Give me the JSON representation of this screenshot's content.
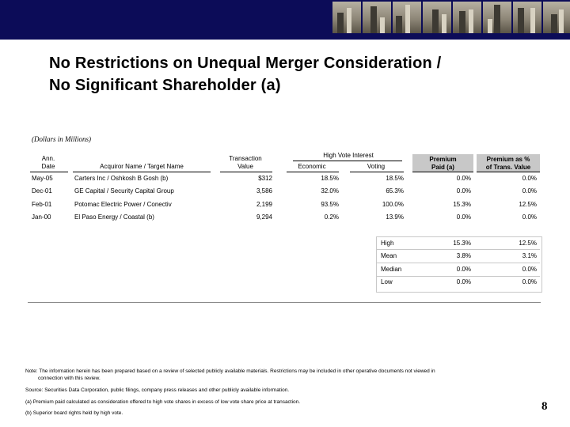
{
  "slide": {
    "title_line1": "No Restrictions on Unequal Merger Consideration /",
    "title_line2": "No Significant Shareholder (a)",
    "subtitle": "(Dollars in Millions)",
    "page_number": "8"
  },
  "table": {
    "group_header": "High Vote Interest",
    "headers": {
      "date_l1": "Ann.",
      "date_l2": "Date",
      "names": "Acquiror Name / Target Name",
      "value_l1": "Transaction",
      "value_l2": "Value",
      "economic": "Economic",
      "voting": "Voting",
      "premium_l1": "Premium",
      "premium_l2": "Paid (a)",
      "pct_l1": "Premium as %",
      "pct_l2": "of Trans. Value"
    },
    "rows": [
      {
        "date": "May-05",
        "names": "Carters Inc / Oshkosh B Gosh (b)",
        "value": "$312",
        "economic": "18.5%",
        "voting": "18.5%",
        "premium": "0.0%",
        "pct": "0.0%"
      },
      {
        "date": "Dec-01",
        "names": "GE Capital / Security Capital Group",
        "value": "3,586",
        "economic": "32.0%",
        "voting": "65.3%",
        "premium": "0.0%",
        "pct": "0.0%"
      },
      {
        "date": "Feb-01",
        "names": "Potomac Electric Power / Conectiv",
        "value": "2,199",
        "economic": "93.5%",
        "voting": "100.0%",
        "premium": "15.3%",
        "pct": "12.5%"
      },
      {
        "date": "Jan-00",
        "names": "El Paso Energy / Coastal (b)",
        "value": "9,294",
        "economic": "0.2%",
        "voting": "13.9%",
        "premium": "0.0%",
        "pct": "0.0%"
      }
    ],
    "stats": [
      {
        "label": "High",
        "premium": "15.3%",
        "pct": "12.5%"
      },
      {
        "label": "Mean",
        "premium": "3.8%",
        "pct": "3.1%"
      },
      {
        "label": "Median",
        "premium": "0.0%",
        "pct": "0.0%"
      },
      {
        "label": "Low",
        "premium": "0.0%",
        "pct": "0.0%"
      }
    ]
  },
  "notes": {
    "note_l1": "Note:  The information herein has been prepared based on a review of selected publicly available materials.  Restrictions may be included in other operative documents not viewed in",
    "note_l2": "connection with this review.",
    "source": "Source:  Securities Data Corporation, public filings, company press releases and other publicly available information.",
    "a": "(a)  Premium paid calculated as consideration offered to high vote shares in excess of low vote share price at transaction.",
    "b": "(b)  Superior board rights held by high vote."
  }
}
